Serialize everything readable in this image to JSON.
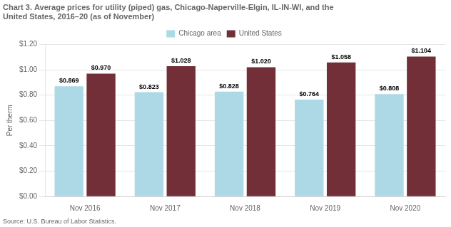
{
  "chart_data": {
    "type": "bar",
    "title": [
      "Chart 3. Average prices for utility (piped) gas, Chicago-Naperville-Elgin, IL-IN-WI, and the",
      "United States, 2016–20 (as of November)"
    ],
    "ylabel": "Per therm",
    "source": "Source: U.S. Bureau of Labor Statistics.",
    "categories": [
      "Nov 2016",
      "Nov 2017",
      "Nov 2018",
      "Nov 2019",
      "Nov 2020"
    ],
    "series": [
      {
        "name": "Chicago area",
        "color": "#ADD8E6",
        "values": [
          0.869,
          0.823,
          0.828,
          0.764,
          0.808
        ],
        "value_labels": [
          "$0.869",
          "$0.823",
          "$0.828",
          "$0.764",
          "$0.808"
        ]
      },
      {
        "name": "United States",
        "color": "#722F37",
        "values": [
          0.97,
          1.028,
          1.02,
          1.058,
          1.104
        ],
        "value_labels": [
          "$0.970",
          "$1.028",
          "$1.020",
          "$1.058",
          "$1.104"
        ]
      }
    ],
    "ylim": [
      0.0,
      1.2
    ],
    "yticks": [
      {
        "value": 0.0,
        "label": "$0.00"
      },
      {
        "value": 0.2,
        "label": "$0.20"
      },
      {
        "value": 0.4,
        "label": "$0.40"
      },
      {
        "value": 0.6,
        "label": "$0.60"
      },
      {
        "value": 0.8,
        "label": "$0.80"
      },
      {
        "value": 1.0,
        "label": "$1.00"
      },
      {
        "value": 1.2,
        "label": "$1.20"
      }
    ],
    "grid": true,
    "legend": "top",
    "data_labels": true
  }
}
